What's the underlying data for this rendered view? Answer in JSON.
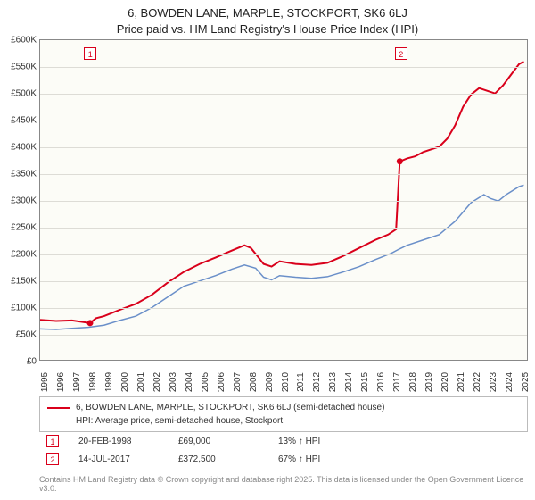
{
  "title": {
    "line1": "6, BOWDEN LANE, MARPLE, STOCKPORT, SK6 6LJ",
    "line2": "Price paid vs. HM Land Registry's House Price Index (HPI)"
  },
  "chart": {
    "type": "line",
    "background_color": "#fcfcf7",
    "grid_color": "#dddcd6",
    "border_color": "#888888",
    "x": {
      "min": 1995,
      "max": 2025.5,
      "ticks": [
        1995,
        1996,
        1997,
        1998,
        1999,
        2000,
        2001,
        2002,
        2003,
        2004,
        2005,
        2006,
        2007,
        2008,
        2009,
        2010,
        2011,
        2012,
        2013,
        2014,
        2015,
        2016,
        2017,
        2018,
        2019,
        2020,
        2021,
        2022,
        2023,
        2024,
        2025
      ]
    },
    "y": {
      "min": 0,
      "max": 600000,
      "ticks": [
        0,
        50000,
        100000,
        150000,
        200000,
        250000,
        300000,
        350000,
        400000,
        450000,
        500000,
        550000,
        600000
      ],
      "tick_labels": [
        "£0",
        "£50K",
        "£100K",
        "£150K",
        "£200K",
        "£250K",
        "£300K",
        "£350K",
        "£400K",
        "£450K",
        "£500K",
        "£550K",
        "£600K"
      ]
    },
    "series": [
      {
        "id": "price_paid",
        "label": "6, BOWDEN LANE, MARPLE, STOCKPORT, SK6 6LJ (semi-detached house)",
        "color": "#d9001b",
        "width": 2,
        "points": [
          [
            1995.0,
            75000
          ],
          [
            1996.0,
            73000
          ],
          [
            1997.0,
            74000
          ],
          [
            1998.13,
            69000
          ],
          [
            1998.5,
            78000
          ],
          [
            1999.0,
            82000
          ],
          [
            2000.0,
            94000
          ],
          [
            2001.0,
            105000
          ],
          [
            2002.0,
            122000
          ],
          [
            2003.0,
            145000
          ],
          [
            2004.0,
            165000
          ],
          [
            2005.0,
            180000
          ],
          [
            2006.0,
            192000
          ],
          [
            2007.0,
            205000
          ],
          [
            2007.8,
            215000
          ],
          [
            2008.2,
            210000
          ],
          [
            2008.6,
            195000
          ],
          [
            2009.0,
            180000
          ],
          [
            2009.5,
            175000
          ],
          [
            2010.0,
            185000
          ],
          [
            2011.0,
            180000
          ],
          [
            2012.0,
            178000
          ],
          [
            2013.0,
            182000
          ],
          [
            2014.0,
            195000
          ],
          [
            2015.0,
            210000
          ],
          [
            2016.0,
            225000
          ],
          [
            2016.8,
            235000
          ],
          [
            2017.3,
            245000
          ],
          [
            2017.53,
            372500
          ],
          [
            2017.54,
            372500
          ],
          [
            2018.0,
            378000
          ],
          [
            2018.5,
            382000
          ],
          [
            2019.0,
            390000
          ],
          [
            2019.5,
            395000
          ],
          [
            2020.0,
            400000
          ],
          [
            2020.5,
            415000
          ],
          [
            2021.0,
            440000
          ],
          [
            2021.5,
            475000
          ],
          [
            2022.0,
            498000
          ],
          [
            2022.5,
            510000
          ],
          [
            2023.0,
            505000
          ],
          [
            2023.5,
            500000
          ],
          [
            2024.0,
            515000
          ],
          [
            2024.5,
            535000
          ],
          [
            2025.0,
            555000
          ],
          [
            2025.3,
            560000
          ]
        ]
      },
      {
        "id": "hpi",
        "label": "HPI: Average price, semi-detached house, Stockport",
        "color": "#6a8fc9",
        "width": 1.5,
        "points": [
          [
            1995.0,
            58000
          ],
          [
            1996.0,
            57000
          ],
          [
            1997.0,
            59000
          ],
          [
            1998.0,
            61000
          ],
          [
            1999.0,
            65000
          ],
          [
            2000.0,
            74000
          ],
          [
            2001.0,
            82000
          ],
          [
            2002.0,
            98000
          ],
          [
            2003.0,
            118000
          ],
          [
            2004.0,
            138000
          ],
          [
            2005.0,
            148000
          ],
          [
            2006.0,
            158000
          ],
          [
            2007.0,
            170000
          ],
          [
            2007.8,
            178000
          ],
          [
            2008.5,
            172000
          ],
          [
            2009.0,
            155000
          ],
          [
            2009.5,
            150000
          ],
          [
            2010.0,
            158000
          ],
          [
            2011.0,
            155000
          ],
          [
            2012.0,
            153000
          ],
          [
            2013.0,
            156000
          ],
          [
            2014.0,
            165000
          ],
          [
            2015.0,
            175000
          ],
          [
            2016.0,
            188000
          ],
          [
            2017.0,
            200000
          ],
          [
            2017.5,
            208000
          ],
          [
            2018.0,
            215000
          ],
          [
            2019.0,
            225000
          ],
          [
            2020.0,
            235000
          ],
          [
            2021.0,
            260000
          ],
          [
            2022.0,
            295000
          ],
          [
            2022.8,
            310000
          ],
          [
            2023.2,
            303000
          ],
          [
            2023.7,
            298000
          ],
          [
            2024.2,
            310000
          ],
          [
            2025.0,
            325000
          ],
          [
            2025.3,
            328000
          ]
        ]
      }
    ],
    "sale_markers": [
      {
        "n": "1",
        "x": 1998.13,
        "y_box": 575000,
        "color": "#d9001b",
        "dot_x": 1998.13,
        "dot_y": 69000
      },
      {
        "n": "2",
        "x": 2017.53,
        "y_box": 575000,
        "color": "#d9001b",
        "dot_x": 2017.53,
        "dot_y": 372500
      }
    ]
  },
  "legend": {
    "border_color": "#bbbbbb"
  },
  "sales_table": {
    "rows": [
      {
        "n": "1",
        "color": "#d9001b",
        "date": "20-FEB-1998",
        "price": "£69,000",
        "vs_hpi": "13% ↑ HPI"
      },
      {
        "n": "2",
        "color": "#d9001b",
        "date": "14-JUL-2017",
        "price": "£372,500",
        "vs_hpi": "67% ↑ HPI"
      }
    ]
  },
  "credit": "Contains HM Land Registry data © Crown copyright and database right 2025. This data is licensed under the Open Government Licence v3.0."
}
